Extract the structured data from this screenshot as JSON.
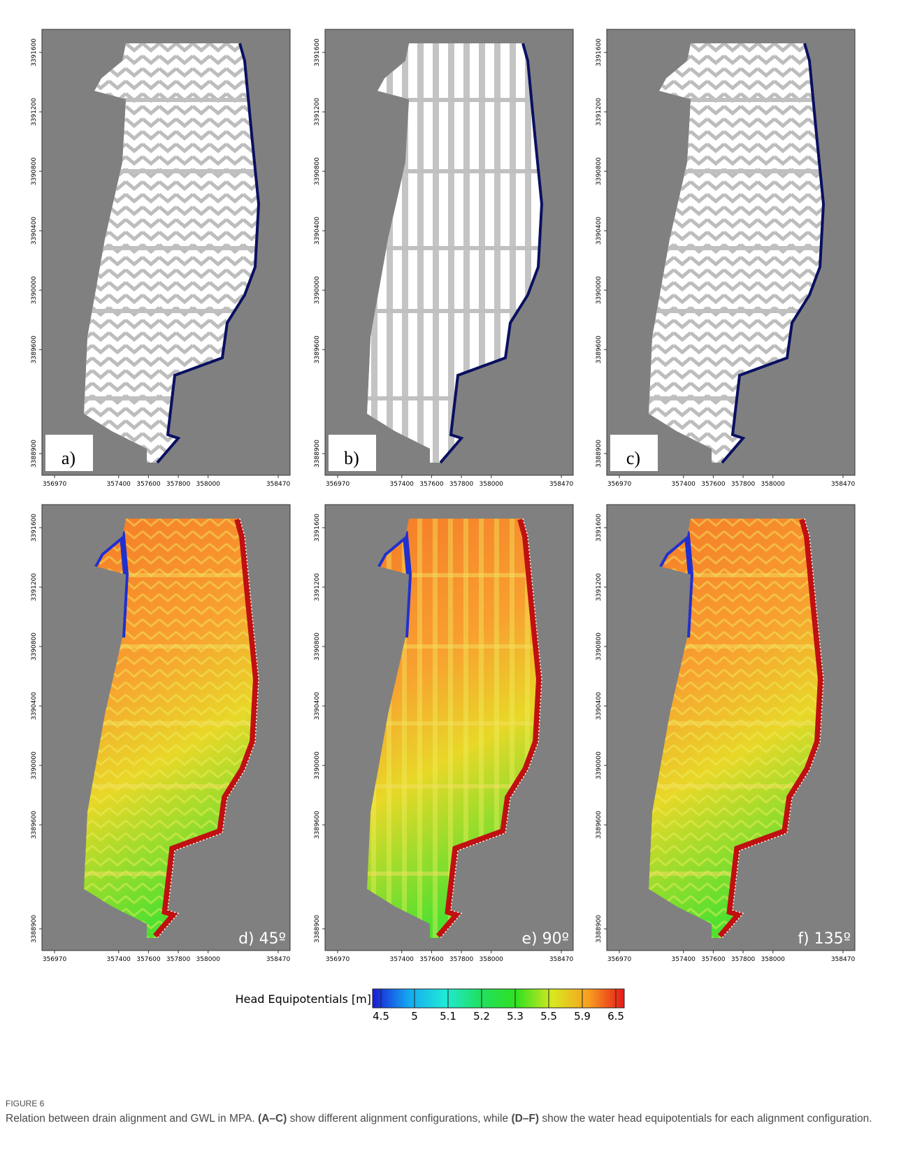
{
  "axes": {
    "xticks": [
      "356970",
      "357400",
      "357600",
      "357800",
      "358000",
      "358470"
    ],
    "yticks": [
      "3388900",
      "3389600",
      "3390000",
      "3390400",
      "3390800",
      "3391200",
      "3391600"
    ]
  },
  "panels": [
    {
      "label": "a)"
    },
    {
      "label": "b)"
    },
    {
      "label": "c)"
    },
    {
      "label": "d) 45º"
    },
    {
      "label": "e) 90º"
    },
    {
      "label": "f) 135º"
    }
  ],
  "colorbar": {
    "label": "Head Equipotentials [m]",
    "ticks": [
      "4.5",
      "5",
      "5.1",
      "5.2",
      "5.3",
      "5.5",
      "5.9",
      "6.5"
    ],
    "colors": [
      "#1a1ad8",
      "#14a8f0",
      "#20e8d8",
      "#20e060",
      "#30e020",
      "#d8e820",
      "#f8a020",
      "#e81818"
    ]
  },
  "caption": {
    "figure": "FIGURE 6",
    "parts": [
      {
        "text": "Relation between drain alignment and GWL in MPA. ",
        "bold": false
      },
      {
        "text": "(A–C)",
        "bold": true
      },
      {
        "text": " show different alignment configurations, while ",
        "bold": false
      },
      {
        "text": "(D–F)",
        "bold": true
      },
      {
        "text": " show the water head equipotentials for each alignment configuration.",
        "bold": false
      }
    ]
  }
}
